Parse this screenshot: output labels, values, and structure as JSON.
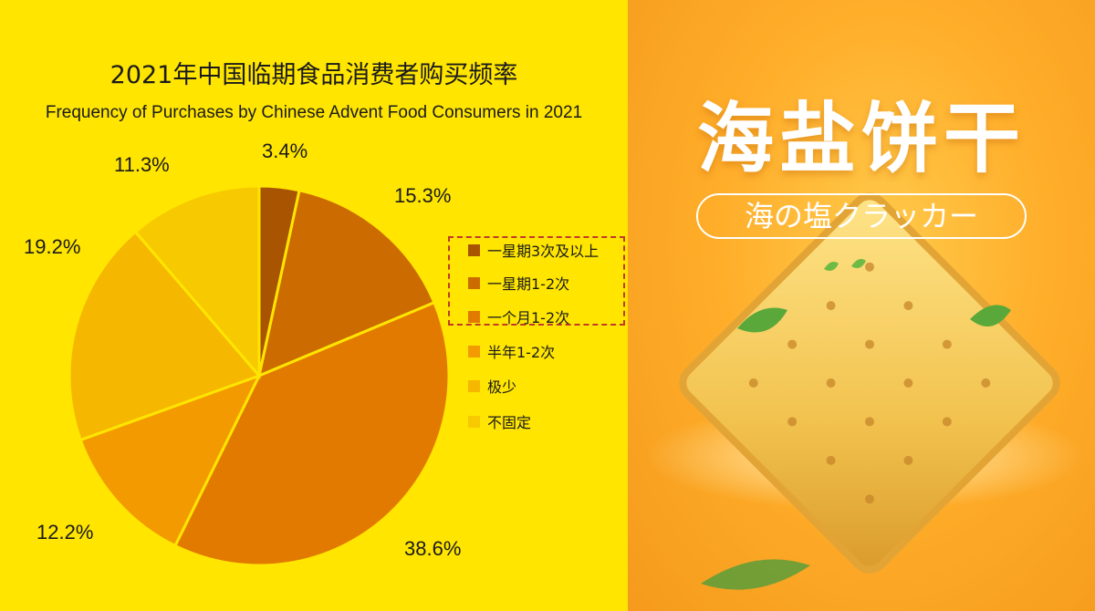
{
  "chart_data": {
    "type": "pie",
    "title": "2021年中国临期食品消费者购买频率",
    "subtitle": "Frequency of Purchases by Chinese Advent Food Consumers in 2021",
    "legend_position": "right",
    "slices": [
      {
        "name": "一星期3次及以上",
        "value": 3.4,
        "label": "3.4%",
        "color": "#A85400"
      },
      {
        "name": "一星期1-2次",
        "value": 15.3,
        "label": "15.3%",
        "color": "#CC6B00"
      },
      {
        "name": "一个月1-2次",
        "value": 38.6,
        "label": "38.6%",
        "color": "#E37A00"
      },
      {
        "name": "半年1-2次",
        "value": 12.2,
        "label": "12.2%",
        "color": "#F29A00"
      },
      {
        "name": "极少",
        "value": 19.2,
        "label": "19.2%",
        "color": "#F5B700"
      },
      {
        "name": "不固定",
        "value": 11.3,
        "label": "11.3%",
        "color": "#F7C900"
      }
    ]
  },
  "promo": {
    "title": "海盐饼干",
    "subtitle": "海の塩クラッカー"
  },
  "colors": {
    "chart_background": "#FFE500",
    "slice_border": "#FFE500",
    "legend_highlight": "#C0392B"
  }
}
